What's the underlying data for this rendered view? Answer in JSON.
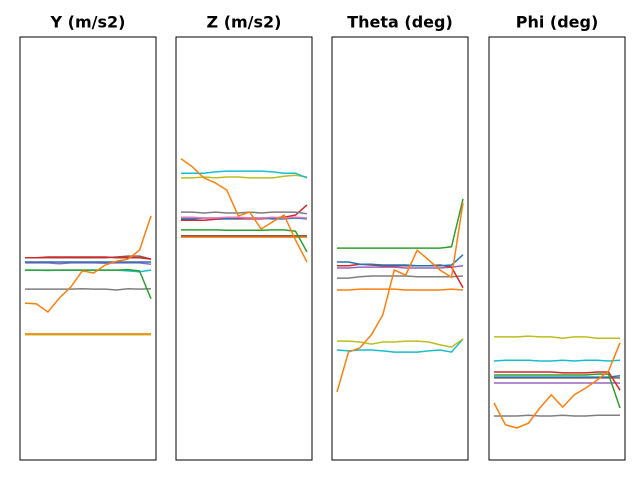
{
  "chart_data": [
    {
      "type": "line",
      "title": "Y (m/s2)",
      "ylim": [
        0,
        100
      ],
      "series": [
        {
          "color": "#bcbd22",
          "values": [
            29.6,
            29.6,
            29.6,
            29.6,
            29.6,
            29.6,
            29.6,
            29.6,
            29.6,
            29.6,
            29.6,
            29.6
          ]
        },
        {
          "color": "#7f7f7f",
          "values": [
            40.4,
            40.4,
            40.4,
            40.4,
            40.4,
            40.5,
            40.4,
            40.4,
            40.2,
            40.5,
            40.4,
            40.5
          ]
        },
        {
          "color": "#17becf",
          "values": [
            44.9,
            44.9,
            44.8,
            44.9,
            44.9,
            44.9,
            44.9,
            44.9,
            44.9,
            44.7,
            44.5,
            44.9
          ]
        },
        {
          "color": "#2ca02c",
          "values": [
            44.9,
            44.9,
            44.9,
            44.9,
            44.9,
            44.9,
            44.9,
            44.9,
            44.9,
            45.0,
            44.7,
            38.1
          ]
        },
        {
          "color": "#9467bd",
          "values": [
            46.6,
            46.6,
            46.6,
            46.4,
            46.6,
            46.6,
            46.6,
            46.5,
            46.6,
            46.6,
            46.6,
            46.3
          ]
        },
        {
          "color": "#1f77b4",
          "values": [
            46.8,
            46.8,
            46.8,
            46.8,
            46.8,
            46.8,
            46.8,
            46.8,
            46.8,
            46.8,
            46.8,
            46.8
          ]
        },
        {
          "color": "#8c564b",
          "values": [
            47.8,
            47.8,
            47.8,
            47.8,
            47.8,
            47.8,
            47.8,
            47.8,
            48.0,
            48.2,
            48.2,
            47.5
          ]
        },
        {
          "color": "#d62728",
          "values": [
            47.8,
            47.8,
            48.0,
            48.0,
            48.0,
            48.0,
            48.0,
            48.0,
            47.8,
            47.8,
            47.8,
            47.5
          ]
        },
        {
          "color": "#ff7f0e",
          "values": [
            29.8,
            29.8,
            29.8,
            29.8,
            29.8,
            29.8,
            29.8,
            29.8,
            29.8,
            29.8,
            29.8,
            29.8
          ]
        },
        {
          "color": "#ff7f0e",
          "values": [
            37.1,
            36.9,
            35.0,
            38.3,
            40.9,
            44.7,
            44.2,
            46.1,
            47.0,
            47.5,
            49.6,
            57.7
          ]
        }
      ]
    },
    {
      "type": "line",
      "title": "Z (m/s2)",
      "ylim": [
        0,
        100
      ],
      "series": [
        {
          "color": "#ff7f0e",
          "values": [
            52.7,
            52.7,
            52.7,
            52.7,
            52.7,
            52.7,
            52.7,
            52.7,
            52.7,
            52.7,
            52.7,
            52.7
          ]
        },
        {
          "color": "#8c564b",
          "values": [
            53.0,
            53.0,
            53.0,
            53.0,
            53.0,
            53.0,
            53.0,
            53.0,
            53.0,
            53.0,
            53.0,
            53.0
          ]
        },
        {
          "color": "#2ca02c",
          "values": [
            54.4,
            54.4,
            54.4,
            54.4,
            54.3,
            54.3,
            54.3,
            54.3,
            54.4,
            54.4,
            54.1,
            49.2
          ]
        },
        {
          "color": "#d62728",
          "values": [
            56.7,
            56.7,
            56.7,
            56.9,
            57.0,
            57.0,
            57.0,
            57.0,
            57.2,
            57.4,
            57.9,
            60.3
          ]
        },
        {
          "color": "#1f77b4",
          "values": [
            57.0,
            57.0,
            57.2,
            57.2,
            57.0,
            57.2,
            57.2,
            57.2,
            57.0,
            57.0,
            57.2,
            57.0
          ]
        },
        {
          "color": "#e377c2",
          "values": [
            57.4,
            57.4,
            57.2,
            57.2,
            57.4,
            57.4,
            57.2,
            57.2,
            57.4,
            57.2,
            57.4,
            57.2
          ]
        },
        {
          "color": "#7f7f7f",
          "values": [
            58.6,
            58.6,
            58.4,
            58.6,
            58.4,
            58.4,
            58.6,
            58.4,
            58.6,
            58.6,
            58.6,
            58.2
          ]
        },
        {
          "color": "#bcbd22",
          "values": [
            66.7,
            66.7,
            66.9,
            66.7,
            66.9,
            66.9,
            66.7,
            66.7,
            66.7,
            67.1,
            67.3,
            66.9
          ]
        },
        {
          "color": "#17becf",
          "values": [
            67.8,
            67.8,
            67.8,
            68.1,
            68.3,
            68.3,
            68.3,
            68.3,
            68.1,
            67.8,
            67.8,
            66.7
          ]
        },
        {
          "color": "#ff7f0e",
          "values": [
            71.2,
            69.3,
            66.7,
            65.5,
            63.8,
            57.7,
            58.6,
            54.6,
            56.3,
            57.9,
            52.0,
            46.8
          ]
        }
      ]
    },
    {
      "type": "line",
      "title": "Theta (deg)",
      "ylim": [
        0,
        100
      ],
      "series": [
        {
          "color": "#17becf",
          "values": [
            26.0,
            25.8,
            26.0,
            26.0,
            25.8,
            25.5,
            25.5,
            25.5,
            25.8,
            26.0,
            25.5,
            28.6
          ]
        },
        {
          "color": "#bcbd22",
          "values": [
            28.1,
            28.1,
            27.9,
            27.4,
            27.9,
            27.9,
            28.1,
            28.1,
            27.9,
            27.2,
            26.7,
            28.6
          ]
        },
        {
          "color": "#ff7f0e",
          "values": [
            40.2,
            40.2,
            40.4,
            40.4,
            40.4,
            40.4,
            40.2,
            40.2,
            40.2,
            40.2,
            40.4,
            40.2
          ]
        },
        {
          "color": "#7f7f7f",
          "values": [
            43.0,
            43.0,
            43.3,
            43.5,
            43.5,
            43.5,
            43.5,
            43.3,
            43.3,
            43.3,
            43.3,
            43.5
          ]
        },
        {
          "color": "#9467bd",
          "values": [
            45.4,
            45.4,
            45.6,
            45.6,
            45.6,
            45.6,
            45.4,
            45.4,
            45.4,
            45.4,
            45.6,
            45.9
          ]
        },
        {
          "color": "#d62728",
          "values": [
            45.9,
            45.9,
            46.3,
            46.1,
            45.9,
            45.9,
            45.9,
            45.9,
            45.9,
            46.1,
            45.6,
            40.7
          ]
        },
        {
          "color": "#1f77b4",
          "values": [
            46.8,
            46.8,
            46.3,
            46.3,
            46.1,
            46.1,
            46.1,
            45.9,
            45.9,
            45.9,
            46.1,
            48.5
          ]
        },
        {
          "color": "#2ca02c",
          "values": [
            50.1,
            50.1,
            50.1,
            50.1,
            50.1,
            50.1,
            50.1,
            50.1,
            50.1,
            50.1,
            50.4,
            61.7
          ]
        },
        {
          "color": "#ff7f0e",
          "values": [
            16.1,
            25.5,
            26.5,
            29.6,
            34.3,
            44.9,
            43.7,
            49.6,
            47.3,
            44.9,
            43.2,
            60.8
          ]
        }
      ]
    },
    {
      "type": "line",
      "title": "Phi (deg)",
      "ylim": [
        0,
        100
      ],
      "series": [
        {
          "color": "#7f7f7f",
          "values": [
            10.4,
            10.4,
            10.4,
            10.6,
            10.4,
            10.4,
            10.6,
            10.4,
            10.4,
            10.6,
            10.6,
            10.6
          ]
        },
        {
          "color": "#9467bd",
          "values": [
            18.2,
            18.2,
            18.2,
            18.2,
            18.2,
            18.2,
            18.2,
            18.2,
            18.2,
            18.2,
            18.2,
            18.2
          ]
        },
        {
          "color": "#8c564b",
          "values": [
            19.4,
            19.4,
            19.4,
            19.4,
            19.4,
            19.4,
            19.4,
            19.4,
            19.4,
            19.4,
            19.4,
            19.4
          ]
        },
        {
          "color": "#1f77b4",
          "values": [
            19.6,
            19.6,
            19.6,
            19.6,
            19.6,
            19.6,
            19.6,
            19.6,
            19.6,
            19.6,
            19.6,
            19.9
          ]
        },
        {
          "color": "#2ca02c",
          "values": [
            20.1,
            20.1,
            20.1,
            20.1,
            20.1,
            20.1,
            20.1,
            20.1,
            20.1,
            20.3,
            20.3,
            12.3
          ]
        },
        {
          "color": "#d62728",
          "values": [
            20.8,
            20.8,
            20.8,
            20.8,
            20.8,
            20.8,
            20.6,
            20.6,
            20.6,
            20.8,
            20.8,
            16.5
          ]
        },
        {
          "color": "#17becf",
          "values": [
            23.4,
            23.6,
            23.6,
            23.6,
            23.4,
            23.4,
            23.6,
            23.4,
            23.6,
            23.6,
            23.4,
            23.6
          ]
        },
        {
          "color": "#bcbd22",
          "values": [
            29.1,
            29.1,
            29.1,
            29.3,
            29.1,
            29.1,
            28.8,
            29.1,
            29.1,
            28.8,
            28.8,
            28.8
          ]
        },
        {
          "color": "#ff7f0e",
          "values": [
            13.5,
            8.3,
            7.6,
            8.7,
            12.3,
            15.4,
            12.5,
            15.4,
            17.0,
            18.9,
            21.0,
            27.7
          ]
        }
      ]
    }
  ]
}
